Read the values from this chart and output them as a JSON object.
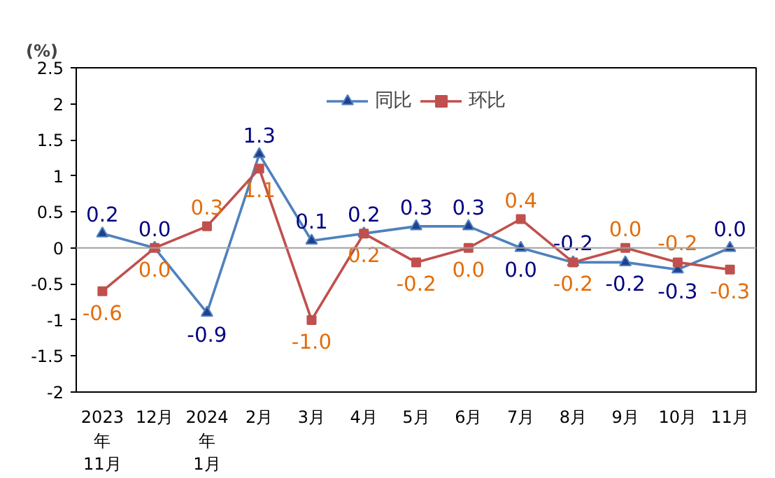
{
  "chart_data": {
    "type": "line",
    "ylabel": "(%)",
    "categories": [
      "2023年11月",
      "12月",
      "2024年1月",
      "2月",
      "3月",
      "4月",
      "5月",
      "6月",
      "7月",
      "8月",
      "9月",
      "10月",
      "11月"
    ],
    "series": [
      {
        "name": "同比",
        "color": "#4f81bd",
        "marker": "triangle",
        "values": [
          0.2,
          0.0,
          -0.9,
          1.3,
          0.1,
          0.2,
          0.3,
          0.3,
          0.0,
          -0.2,
          -0.2,
          -0.3,
          0.0
        ],
        "value_labels": [
          "0.2",
          "0.0",
          "-0.9",
          "1.3",
          "0.1",
          "0.2",
          "0.3",
          "0.3",
          "0.0",
          "-0.2",
          "-0.2",
          "-0.3",
          "0.0"
        ]
      },
      {
        "name": "环比",
        "color": "#c0504d",
        "marker": "square",
        "values": [
          -0.6,
          0.0,
          0.3,
          1.1,
          -1.0,
          0.2,
          -0.2,
          0.0,
          0.4,
          -0.2,
          0.0,
          -0.2,
          -0.3
        ],
        "value_labels": [
          "-0.6",
          "0.0",
          "0.3",
          "1.1",
          "-1.0",
          "0.2",
          "-0.2",
          "0.0",
          "0.4",
          "-0.2",
          "0.0",
          "-0.2",
          "-0.3"
        ]
      }
    ],
    "ylim": [
      -2,
      2.5
    ],
    "yticks": [
      -2,
      -1.5,
      -1,
      -0.5,
      0,
      0.5,
      1,
      1.5,
      2,
      2.5
    ],
    "ref_lines": [
      {
        "axis": "y",
        "value": 0,
        "color": "#a0a0a0"
      }
    ],
    "grid": false,
    "legend": "top",
    "line_style": "solid"
  }
}
